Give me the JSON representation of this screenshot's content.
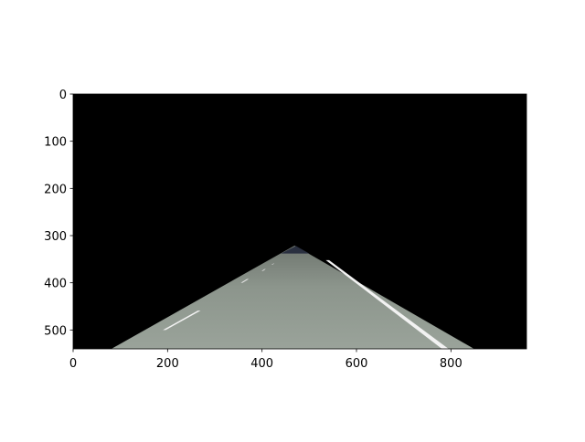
{
  "chart_data": {
    "type": "image",
    "xlim": [
      0,
      960
    ],
    "ylim": [
      540,
      0
    ],
    "xticks": [
      0,
      200,
      400,
      600,
      800
    ],
    "yticks": [
      0,
      100,
      200,
      300,
      400,
      500
    ]
  }
}
